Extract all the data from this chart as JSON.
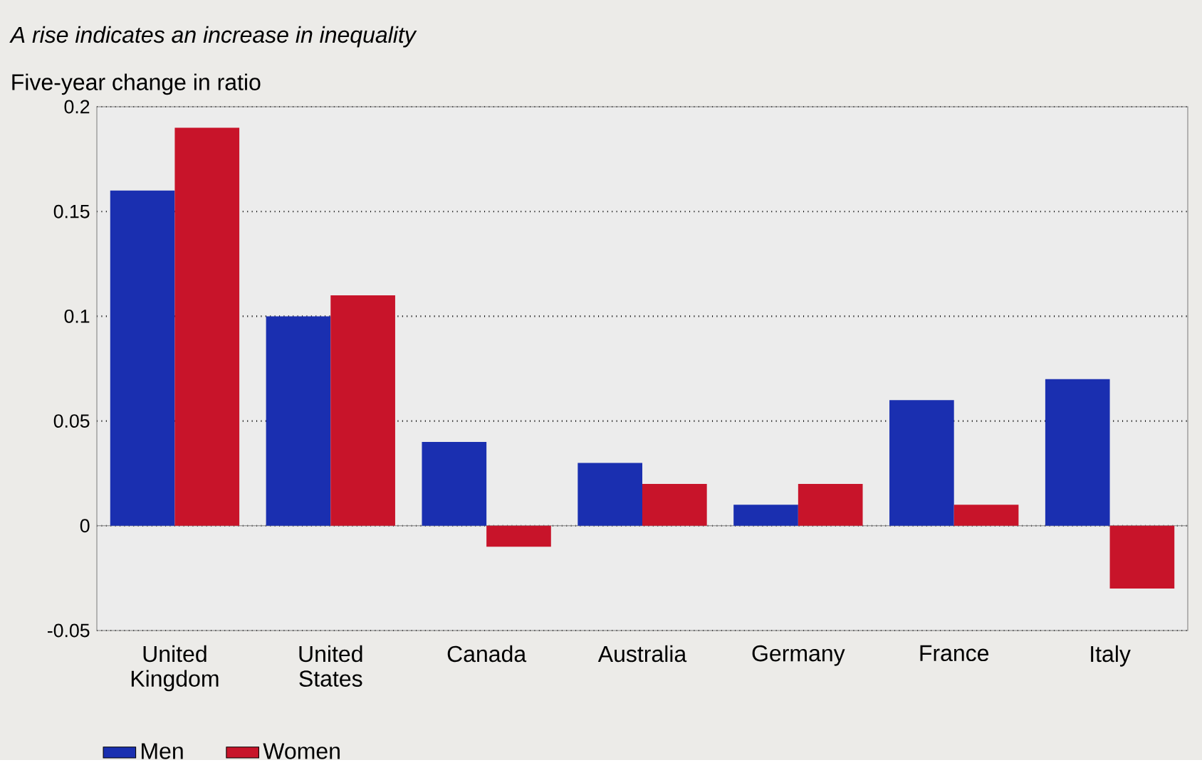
{
  "chart_data": {
    "type": "bar",
    "title": "*A rise indicates an increase in inequality*",
    "ylabel": "Five-year change in ratio",
    "categories": [
      "United Kingdom",
      "United States",
      "Canada",
      "Australia",
      "Germany",
      "France",
      "Italy"
    ],
    "series": [
      {
        "name": "Men",
        "color": "#1a2fb0",
        "values": [
          0.16,
          0.1,
          0.04,
          0.03,
          0.01,
          0.06,
          0.07
        ]
      },
      {
        "name": "Women",
        "color": "#c8142a",
        "values": [
          0.19,
          0.11,
          -0.01,
          0.02,
          0.02,
          0.01,
          -0.03
        ]
      }
    ],
    "ylim": [
      -0.05,
      0.2
    ],
    "yticks": [
      -0.05,
      0,
      0.05,
      0.1,
      0.15,
      0.2
    ],
    "grid": "y",
    "legend": "bottom left"
  }
}
